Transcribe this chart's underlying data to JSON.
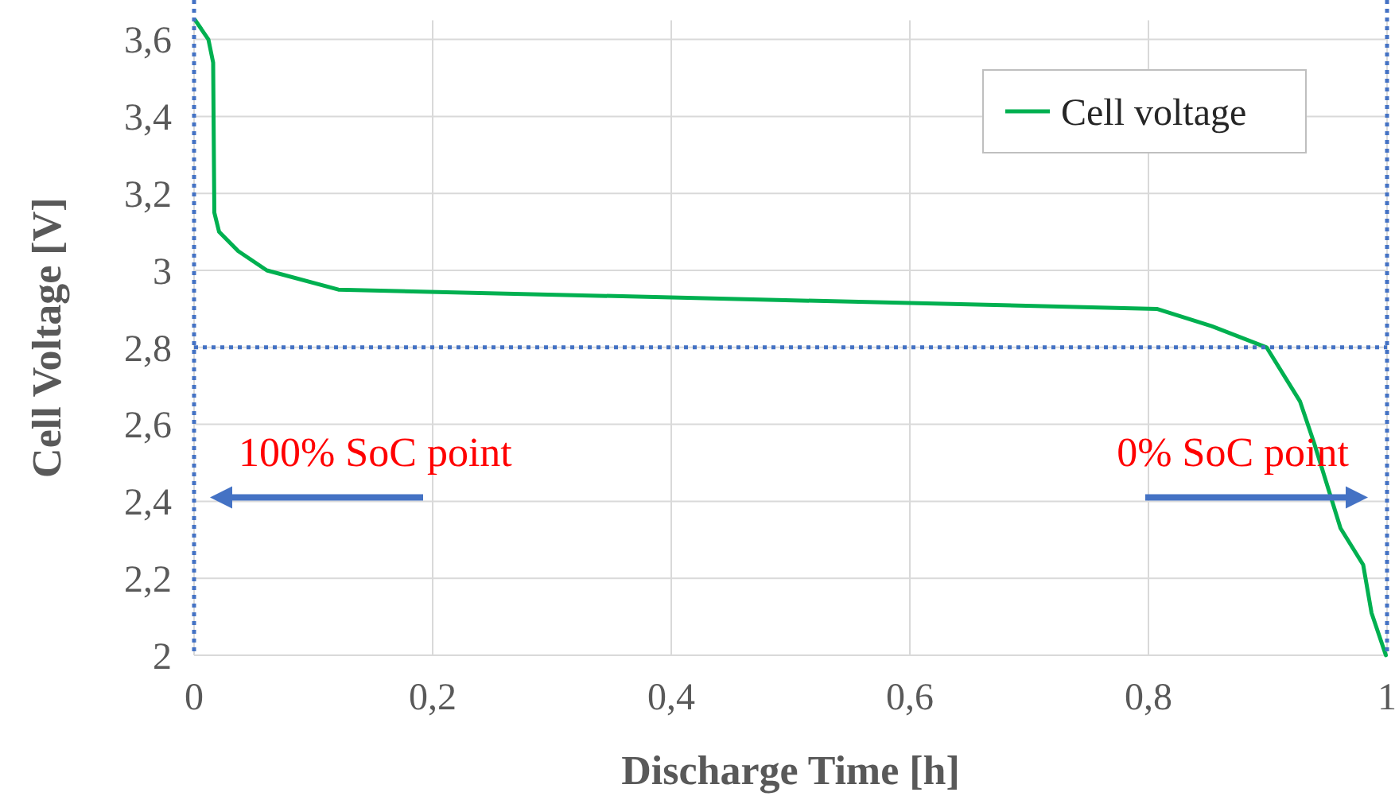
{
  "chart_data": {
    "type": "line",
    "xlabel": "Discharge Time [h]",
    "ylabel": "Cell Voltage [V]",
    "x": [
      0.001,
      0.012,
      0.016,
      0.017,
      0.021,
      0.037,
      0.061,
      0.121,
      0.807,
      0.853,
      0.899,
      0.927,
      0.939,
      0.961,
      0.98,
      0.987,
      0.999
    ],
    "series": [
      {
        "name": "Cell voltage",
        "color": "#00b050",
        "values": [
          3.65,
          3.6,
          3.54,
          3.15,
          3.1,
          3.05,
          3.0,
          2.95,
          2.9,
          2.855,
          2.8,
          2.66,
          2.55,
          2.33,
          2.235,
          2.11,
          2.0
        ]
      }
    ],
    "xlim": [
      0,
      1
    ],
    "xticks": [
      0,
      {
        "value": 0.2,
        "label": "0,2"
      },
      {
        "value": 0.4,
        "label": "0,4"
      },
      {
        "value": 0.6,
        "label": "0,6"
      },
      {
        "value": 0.8,
        "label": "0,8"
      },
      1
    ],
    "ylim": [
      2,
      3.65
    ],
    "yticks": [
      2,
      {
        "value": 2.2,
        "label": "2,2"
      },
      {
        "value": 2.4,
        "label": "2,4"
      },
      {
        "value": 2.6,
        "label": "2,6"
      },
      {
        "value": 2.8,
        "label": "2,8"
      },
      3,
      {
        "value": 3.2,
        "label": "3,2"
      },
      {
        "value": 3.4,
        "label": "3,4"
      },
      {
        "value": 3.6,
        "label": "3,6"
      }
    ],
    "grid": true,
    "legend": "top right",
    "marker": "none",
    "line_style": "solid",
    "ref_lines": [
      {
        "axis": "x",
        "value": 0,
        "color": "#4472c4",
        "line_style": "dotted"
      },
      {
        "axis": "x",
        "value": 1,
        "color": "#4472c4",
        "line_style": "dotted"
      },
      {
        "axis": "y",
        "value": 2.8,
        "color": "#4472c4",
        "line_style": "dotted"
      }
    ],
    "annotations": [
      {
        "text": "100% SoC point",
        "x": 0,
        "y": 2.41
      },
      {
        "text": "0% SoC point",
        "x": 1,
        "y": 2.41
      }
    ]
  }
}
